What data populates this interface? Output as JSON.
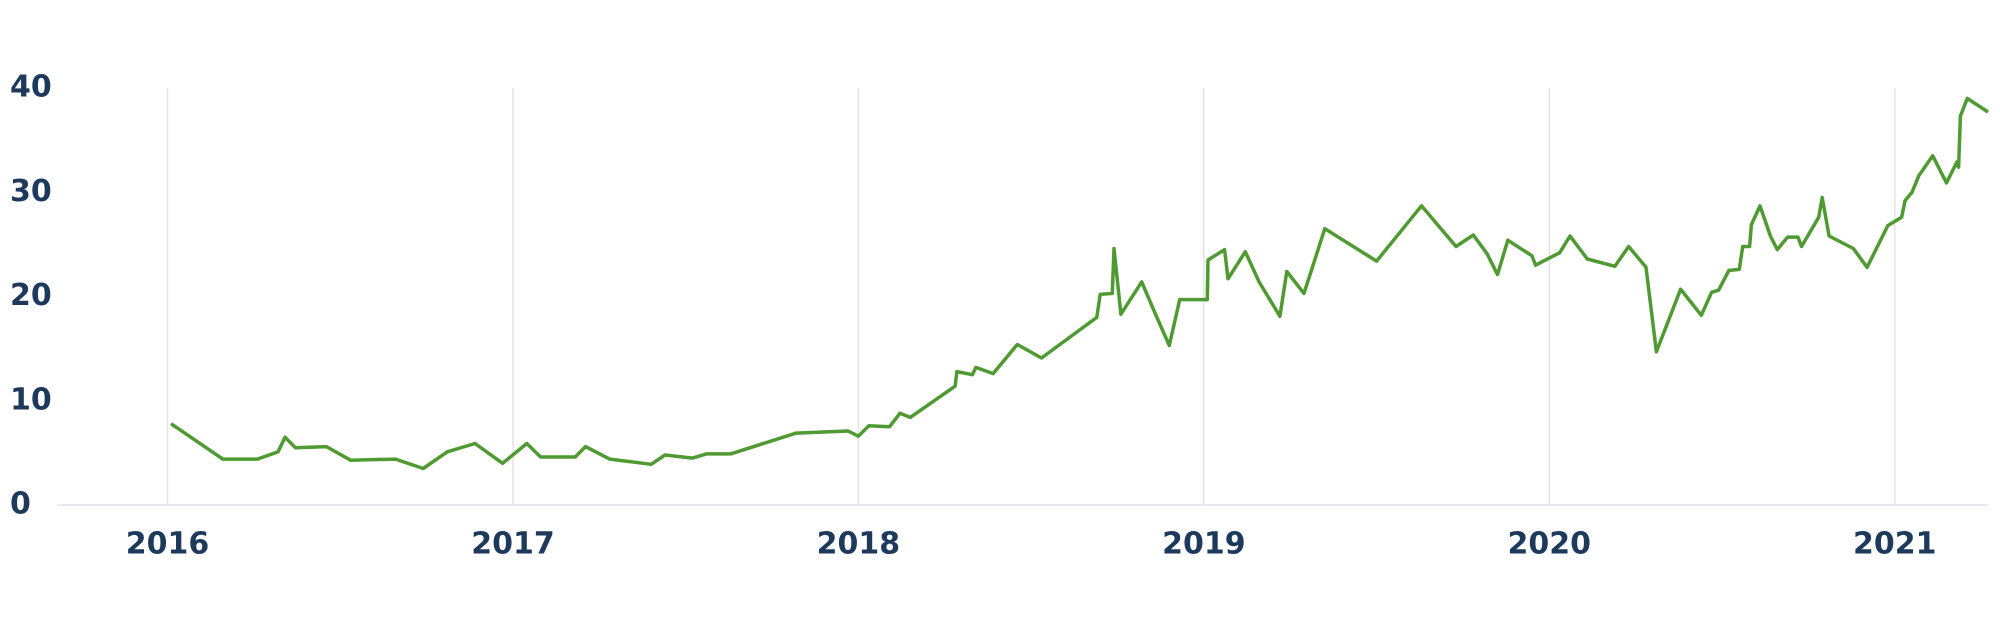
{
  "chart_data": {
    "type": "line",
    "x": [
      2016.01,
      2016.16,
      2016.26,
      2016.32,
      2016.34,
      2016.37,
      2016.46,
      2016.53,
      2016.66,
      2016.74,
      2016.81,
      2016.89,
      2016.97,
      2017.04,
      2017.08,
      2017.18,
      2017.21,
      2017.28,
      2017.4,
      2017.44,
      2017.52,
      2017.56,
      2017.63,
      2017.82,
      2017.97,
      2018.0,
      2018.03,
      2018.09,
      2018.12,
      2018.15,
      2018.28,
      2018.285,
      2018.33,
      2018.34,
      2018.39,
      2018.46,
      2018.53,
      2018.69,
      2018.7,
      2018.735,
      2018.74,
      2018.76,
      2018.82,
      2018.86,
      2018.9,
      2018.93,
      2019.01,
      2019.012,
      2019.06,
      2019.07,
      2019.12,
      2019.16,
      2019.22,
      2019.24,
      2019.29,
      2019.35,
      2019.5,
      2019.63,
      2019.73,
      2019.78,
      2019.82,
      2019.85,
      2019.88,
      2019.95,
      2019.96,
      2020.03,
      2020.06,
      2020.11,
      2020.19,
      2020.23,
      2020.28,
      2020.31,
      2020.38,
      2020.44,
      2020.47,
      2020.49,
      2020.52,
      2020.55,
      2020.555,
      2020.56,
      2020.58,
      2020.585,
      2020.61,
      2020.64,
      2020.66,
      2020.69,
      2020.72,
      2020.73,
      2020.78,
      2020.79,
      2020.81,
      2020.88,
      2020.92,
      2020.98,
      2021.02,
      2021.03,
      2021.05,
      2021.07,
      2021.11,
      2021.15,
      2021.18,
      2021.185,
      2021.19,
      2021.21,
      2021.27
    ],
    "values": [
      7.8,
      4.4,
      4.4,
      5.1,
      6.5,
      5.5,
      5.6,
      4.3,
      4.4,
      3.5,
      5.1,
      5.9,
      4.0,
      5.9,
      4.6,
      4.6,
      5.6,
      4.4,
      3.9,
      4.8,
      4.5,
      4.9,
      4.9,
      6.9,
      7.1,
      6.6,
      7.6,
      7.5,
      8.8,
      8.4,
      11.4,
      12.8,
      12.5,
      13.2,
      12.6,
      15.4,
      14.1,
      18.0,
      20.2,
      20.3,
      24.6,
      18.3,
      21.4,
      18.3,
      15.3,
      19.7,
      19.7,
      23.5,
      24.5,
      21.7,
      24.3,
      21.4,
      18.1,
      22.4,
      20.3,
      26.5,
      23.4,
      28.7,
      24.8,
      25.9,
      24.1,
      22.1,
      25.4,
      23.9,
      23.0,
      24.2,
      25.8,
      23.6,
      22.9,
      24.8,
      22.8,
      14.7,
      20.7,
      18.2,
      20.4,
      20.6,
      22.5,
      22.6,
      23.7,
      24.8,
      24.8,
      26.9,
      28.7,
      25.8,
      24.5,
      25.7,
      25.7,
      24.8,
      27.6,
      29.5,
      25.8,
      24.6,
      22.8,
      26.8,
      27.6,
      29.2,
      30.0,
      31.6,
      33.5,
      30.9,
      32.9,
      32.4,
      37.3,
      39.0,
      37.7
    ],
    "color": "#4f9a32",
    "xlim": [
      2015.68,
      2021.27
    ],
    "xticks": [
      2016,
      2017,
      2018,
      2019,
      2020,
      2021
    ],
    "ylim": [
      0,
      40
    ],
    "yticks": [
      0,
      10,
      20,
      30,
      40
    ],
    "grid": true
  }
}
